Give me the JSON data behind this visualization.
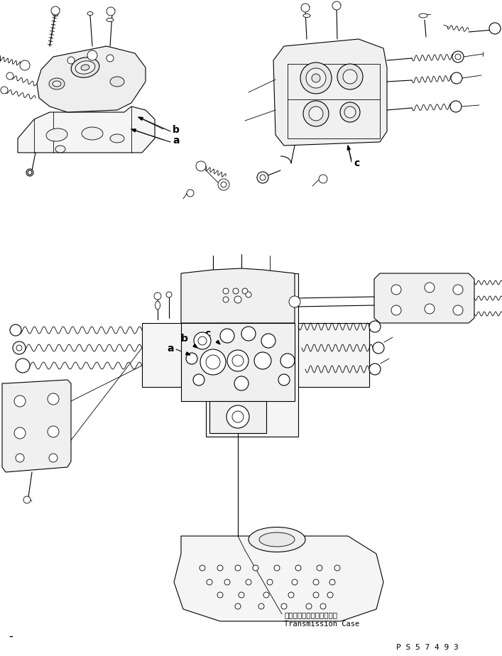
{
  "bg_color": "#ffffff",
  "line_color": "#000000",
  "fig_width": 7.07,
  "fig_height": 9.24,
  "dpi": 100,
  "label_a": "a",
  "label_b": "b",
  "label_c": "c",
  "transmission_case_ja": "トランスミッションケース",
  "transmission_case_en": "Transmission Case",
  "part_number": "P S 5 7 4 9 3",
  "minus_symbol": "-"
}
